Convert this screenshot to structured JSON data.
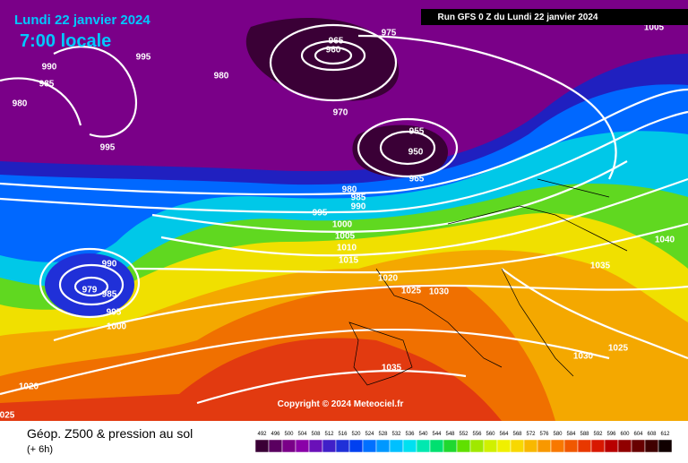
{
  "header": {
    "date": "Lundi 22 janvier 2024",
    "time": "7:00 locale",
    "run": "Run GFS 0 Z du Lundi 22 janvier 2024"
  },
  "copyright": "Copyright © 2024 Meteociel.fr",
  "footer": {
    "title": "Géop. Z500 & pression au sol",
    "step": "(+ 6h)"
  },
  "isobar_labels": [
    "965",
    "960",
    "975",
    "980",
    "990",
    "985",
    "980",
    "995",
    "995",
    "970",
    "955",
    "950",
    "965",
    "980",
    "985",
    "990",
    "995",
    "1000",
    "1005",
    "1010",
    "1015",
    "1020",
    "1025",
    "1030",
    "1035",
    "1035",
    "1040",
    "1025",
    "1030",
    "990",
    "979",
    "985",
    "995",
    "1000",
    "1020",
    "025",
    "1005"
  ],
  "legend": {
    "ticks": [
      492,
      496,
      500,
      504,
      508,
      512,
      516,
      520,
      524,
      528,
      532,
      536,
      540,
      544,
      548,
      552,
      556,
      560,
      564,
      568,
      572,
      576,
      580,
      584,
      588,
      592,
      596,
      600,
      604,
      608,
      612
    ],
    "colors": [
      "#3a0036",
      "#5a0060",
      "#7a0088",
      "#8a00a8",
      "#6a10b8",
      "#4020c8",
      "#2030d8",
      "#0040f0",
      "#0070ff",
      "#0098ff",
      "#00c0ff",
      "#00e0f0",
      "#00e8b0",
      "#00e070",
      "#20d830",
      "#60e000",
      "#a0e800",
      "#d0f000",
      "#f0f000",
      "#f8d800",
      "#f8b800",
      "#f89800",
      "#f87800",
      "#f05800",
      "#e83800",
      "#d81800",
      "#b80000",
      "#900000",
      "#680000",
      "#400000",
      "#100000"
    ]
  }
}
